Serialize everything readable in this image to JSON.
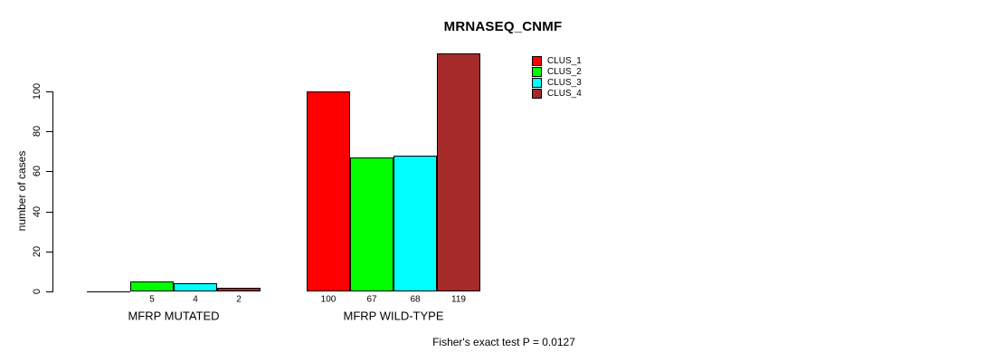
{
  "chart_data": {
    "type": "bar",
    "title": "MRNASEQ_CNMF",
    "xlabel": "",
    "ylabel": "number of cases",
    "categories": [
      "MFRP MUTATED",
      "MFRP WILD-TYPE"
    ],
    "series": [
      {
        "name": "CLUS_1",
        "color": "#FF0000",
        "values": [
          0,
          100
        ]
      },
      {
        "name": "CLUS_2",
        "color": "#00FF00",
        "values": [
          5,
          67
        ]
      },
      {
        "name": "CLUS_3",
        "color": "#00FFFF",
        "values": [
          4,
          68
        ]
      },
      {
        "name": "CLUS_4",
        "color": "#A52A2A",
        "values": [
          2,
          119
        ]
      }
    ],
    "bar_value_labels": [
      [
        null,
        "5",
        "4",
        "2"
      ],
      [
        "100",
        "67",
        "68",
        "119"
      ]
    ],
    "yticks": [
      "0",
      "20",
      "40",
      "60",
      "80",
      "100"
    ],
    "ylim": [
      0,
      100
    ],
    "grid": false,
    "legend_position": "top-right",
    "legend_entries": [
      "CLUS_1",
      "CLUS_2",
      "CLUS_3",
      "CLUS_4"
    ],
    "annotation": "Fisher's exact test P = 0.0127"
  },
  "colors": {
    "background": "#FFFFFF",
    "axis": "#000000",
    "text": "#000000"
  }
}
